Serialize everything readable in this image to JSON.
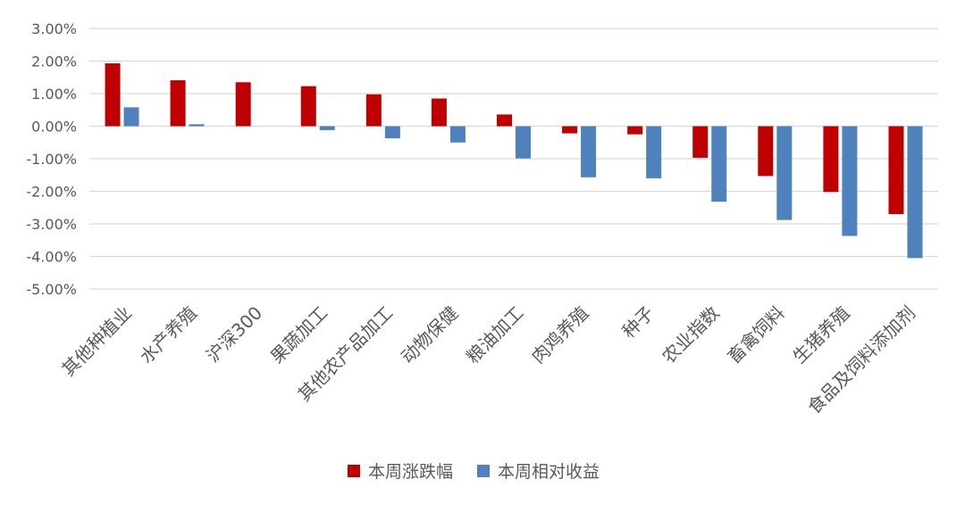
{
  "chart_data": {
    "type": "bar",
    "categories": [
      "其他种植业",
      "水产养殖",
      "沪深300",
      "果蔬加工",
      "其他农产品加工",
      "动物保健",
      "粮油加工",
      "肉鸡养殖",
      "种子",
      "农业指数",
      "畜禽饲料",
      "生猪养殖",
      "食品及饲料添加剂"
    ],
    "series": [
      {
        "name": "本周涨跌幅",
        "color": "#C00000",
        "values": [
          1.93,
          1.41,
          1.35,
          1.23,
          0.98,
          0.85,
          0.36,
          -0.22,
          -0.25,
          -0.97,
          -1.53,
          -2.02,
          -2.7
        ]
      },
      {
        "name": "本周相对收益",
        "color": "#4F81BD",
        "values": [
          0.58,
          0.06,
          0.0,
          -0.12,
          -0.37,
          -0.5,
          -0.99,
          -1.57,
          -1.6,
          -2.32,
          -2.88,
          -3.37,
          -4.05
        ]
      }
    ],
    "ylim": [
      -5.0,
      3.0
    ],
    "yticks": [
      "3.00%",
      "2.00%",
      "1.00%",
      "0.00%",
      "-1.00%",
      "-2.00%",
      "-3.00%",
      "-4.00%",
      "-5.00%"
    ],
    "ytick_values": [
      3,
      2,
      1,
      0,
      -1,
      -2,
      -3,
      -4,
      -5
    ],
    "grid": true,
    "legend_position": "bottom-center",
    "grid_color": "#D9D9D9",
    "text_color": "#595959"
  }
}
